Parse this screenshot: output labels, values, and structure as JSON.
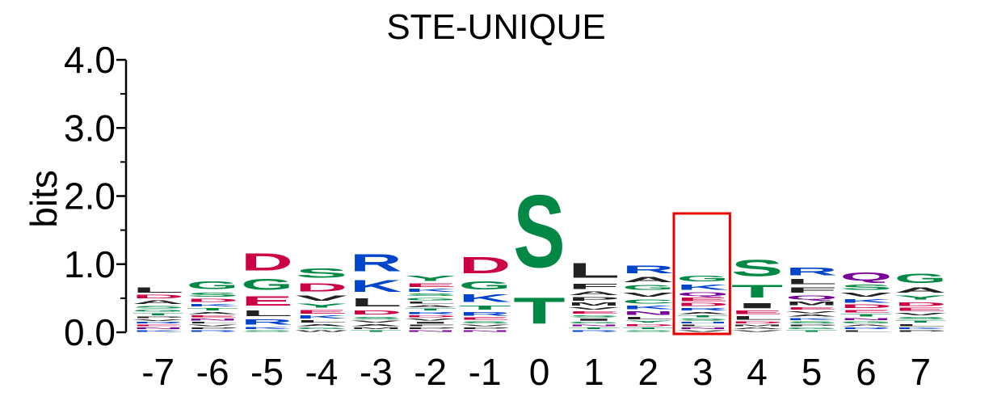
{
  "chart_data": {
    "type": "sequence-logo",
    "title": "STE-UNIQUE",
    "ylabel": "bits",
    "ylim": [
      0,
      4.0
    ],
    "yticks": [
      "0.0",
      "1.0",
      "2.0",
      "3.0",
      "4.0"
    ],
    "positions": [
      "-7",
      "-6",
      "-5",
      "-4",
      "-3",
      "-2",
      "-1",
      "0",
      "1",
      "2",
      "3",
      "4",
      "5",
      "6",
      "7"
    ],
    "highlight_position": "3",
    "highlight_color": "#e60000",
    "colors": {
      "D": "#cc0044",
      "E": "#cc0044",
      "S": "#008844",
      "T": "#008844",
      "G": "#008844",
      "Y": "#008844",
      "C": "#008844",
      "R": "#0044cc",
      "K": "#0044cc",
      "H": "#0044cc",
      "N": "#7a0099",
      "Q": "#7a0099",
      "L": "#222222",
      "A": "#222222",
      "V": "#222222",
      "I": "#222222",
      "M": "#222222",
      "F": "#222222",
      "P": "#222222",
      "W": "#222222"
    },
    "stacks": [
      [
        [
          "L",
          0.12
        ],
        [
          "A",
          0.08
        ],
        [
          "D",
          0.08
        ],
        [
          "S",
          0.06
        ],
        [
          "T",
          0.05
        ],
        [
          "G",
          0.05
        ],
        [
          "K",
          0.04
        ],
        [
          "N",
          0.04
        ],
        [
          "E",
          0.04
        ],
        [
          "R",
          0.04
        ],
        [
          "V",
          0.04
        ],
        [
          "P",
          0.04
        ]
      ],
      [
        [
          "G",
          0.18
        ],
        [
          "S",
          0.1
        ],
        [
          "D",
          0.07
        ],
        [
          "T",
          0.06
        ],
        [
          "K",
          0.06
        ],
        [
          "N",
          0.05
        ],
        [
          "E",
          0.05
        ],
        [
          "A",
          0.05
        ],
        [
          "R",
          0.04
        ],
        [
          "P",
          0.04
        ],
        [
          "V",
          0.04
        ],
        [
          "L",
          0.04
        ]
      ],
      [
        [
          "D",
          0.4
        ],
        [
          "G",
          0.26
        ],
        [
          "E",
          0.22
        ],
        [
          "L",
          0.14
        ],
        [
          "R",
          0.12
        ],
        [
          "K",
          0.05
        ],
        [
          "S",
          0.04
        ]
      ],
      [
        [
          "S",
          0.22
        ],
        [
          "D",
          0.2
        ],
        [
          "V",
          0.12
        ],
        [
          "Y",
          0.1
        ],
        [
          "E",
          0.08
        ],
        [
          "K",
          0.07
        ],
        [
          "L",
          0.06
        ],
        [
          "A",
          0.05
        ],
        [
          "W",
          0.04
        ],
        [
          "G",
          0.04
        ]
      ],
      [
        [
          "R",
          0.4
        ],
        [
          "K",
          0.28
        ],
        [
          "L",
          0.2
        ],
        [
          "D",
          0.1
        ],
        [
          "S",
          0.06
        ],
        [
          "A",
          0.05
        ],
        [
          "V",
          0.05
        ],
        [
          "T",
          0.04
        ],
        [
          "M",
          0.04
        ]
      ],
      [
        [
          "Y",
          0.12
        ],
        [
          "E",
          0.08
        ],
        [
          "K",
          0.07
        ],
        [
          "G",
          0.06
        ],
        [
          "S",
          0.06
        ],
        [
          "V",
          0.05
        ],
        [
          "D",
          0.05
        ],
        [
          "R",
          0.05
        ],
        [
          "T",
          0.05
        ],
        [
          "A",
          0.05
        ],
        [
          "L",
          0.05
        ],
        [
          "N",
          0.04
        ],
        [
          "P",
          0.04
        ],
        [
          "F",
          0.04
        ],
        [
          "I",
          0.04
        ]
      ],
      [
        [
          "D",
          0.38
        ],
        [
          "G",
          0.2
        ],
        [
          "K",
          0.18
        ],
        [
          "T",
          0.1
        ],
        [
          "R",
          0.08
        ],
        [
          "E",
          0.06
        ],
        [
          "S",
          0.05
        ],
        [
          "N",
          0.04
        ],
        [
          "P",
          0.04
        ],
        [
          "V",
          0.04
        ]
      ],
      [
        [
          "S",
          1.7
        ],
        [
          "T",
          0.62
        ]
      ],
      [
        [
          "L",
          0.35
        ],
        [
          "F",
          0.12
        ],
        [
          "P",
          0.08
        ],
        [
          "A",
          0.08
        ],
        [
          "M",
          0.07
        ],
        [
          "E",
          0.06
        ],
        [
          "V",
          0.06
        ],
        [
          "I",
          0.05
        ],
        [
          "S",
          0.05
        ],
        [
          "R",
          0.04
        ],
        [
          "T",
          0.04
        ],
        [
          "N",
          0.04
        ],
        [
          "G",
          0.04
        ]
      ],
      [
        [
          "R",
          0.18
        ],
        [
          "A",
          0.12
        ],
        [
          "G",
          0.11
        ],
        [
          "C",
          0.1
        ],
        [
          "V",
          0.1
        ],
        [
          "N",
          0.08
        ],
        [
          "K",
          0.08
        ],
        [
          "L",
          0.06
        ],
        [
          "D",
          0.05
        ],
        [
          "Y",
          0.05
        ],
        [
          "S",
          0.04
        ],
        [
          "T",
          0.04
        ]
      ],
      [
        [
          "G",
          0.14
        ],
        [
          "K",
          0.12
        ],
        [
          "E",
          0.08
        ],
        [
          "Q",
          0.08
        ],
        [
          "D",
          0.07
        ],
        [
          "R",
          0.06
        ],
        [
          "S",
          0.05
        ],
        [
          "T",
          0.05
        ],
        [
          "A",
          0.05
        ],
        [
          "V",
          0.04
        ],
        [
          "N",
          0.04
        ],
        [
          "L",
          0.04
        ],
        [
          "H",
          0.04
        ]
      ],
      [
        [
          "S",
          0.38
        ],
        [
          "T",
          0.3
        ],
        [
          "I",
          0.12
        ],
        [
          "L",
          0.08
        ],
        [
          "E",
          0.08
        ],
        [
          "D",
          0.05
        ],
        [
          "V",
          0.04
        ],
        [
          "A",
          0.04
        ],
        [
          "M",
          0.04
        ]
      ],
      [
        [
          "R",
          0.18
        ],
        [
          "F",
          0.12
        ],
        [
          "L",
          0.12
        ],
        [
          "Q",
          0.1
        ],
        [
          "M",
          0.08
        ],
        [
          "E",
          0.06
        ],
        [
          "S",
          0.05
        ],
        [
          "K",
          0.05
        ],
        [
          "A",
          0.05
        ],
        [
          "V",
          0.05
        ],
        [
          "T",
          0.04
        ],
        [
          "G",
          0.04
        ],
        [
          "P",
          0.04
        ]
      ],
      [
        [
          "Q",
          0.2
        ],
        [
          "S",
          0.12
        ],
        [
          "V",
          0.1
        ],
        [
          "D",
          0.08
        ],
        [
          "K",
          0.08
        ],
        [
          "T",
          0.06
        ],
        [
          "E",
          0.06
        ],
        [
          "G",
          0.05
        ],
        [
          "N",
          0.05
        ],
        [
          "L",
          0.04
        ],
        [
          "R",
          0.04
        ],
        [
          "A",
          0.04
        ]
      ],
      [
        [
          "G",
          0.22
        ],
        [
          "A",
          0.12
        ],
        [
          "Y",
          0.1
        ],
        [
          "D",
          0.09
        ],
        [
          "E",
          0.07
        ],
        [
          "S",
          0.06
        ],
        [
          "V",
          0.06
        ],
        [
          "L",
          0.05
        ],
        [
          "T",
          0.05
        ],
        [
          "P",
          0.04
        ],
        [
          "K",
          0.04
        ]
      ]
    ]
  }
}
